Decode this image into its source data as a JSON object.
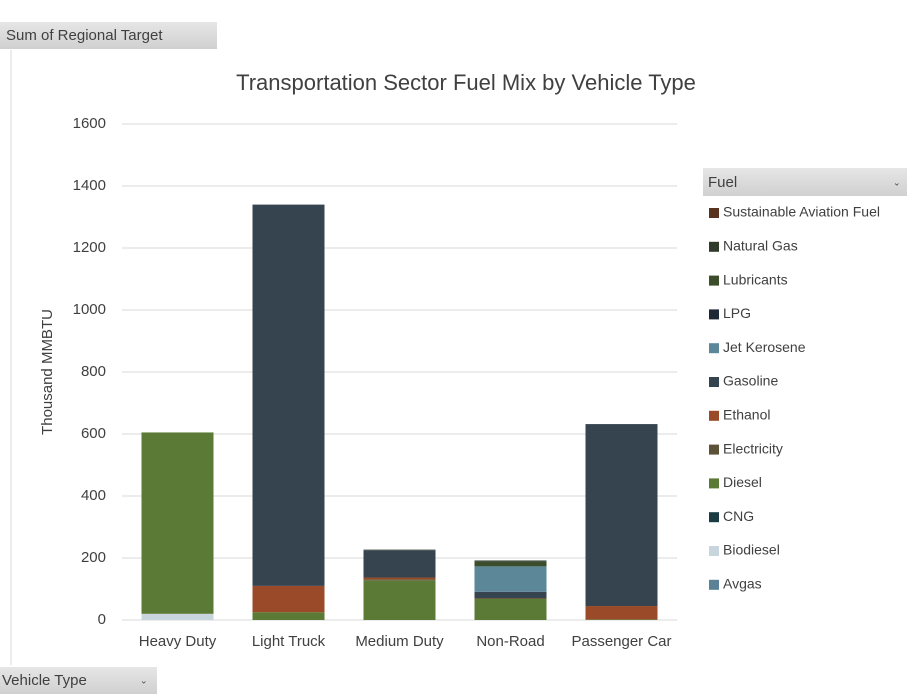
{
  "chart_data": {
    "type": "bar",
    "stacked": true,
    "value_field": "Sum of Regional Target",
    "axis_field": "Vehicle Type",
    "legend_title": "Fuel",
    "legend_position": "right",
    "title": "Transportation Sector Fuel Mix by Vehicle Type",
    "ylabel": "Thousand MMBTU",
    "categories": [
      "Heavy Duty",
      "Light Truck",
      "Medium Duty",
      "Non-Road",
      "Passenger Car"
    ],
    "ylim": [
      0,
      1600
    ],
    "yticks": [
      0,
      200,
      400,
      600,
      800,
      1000,
      1200,
      1400,
      1600
    ],
    "grid": true,
    "series": [
      {
        "name": "Avgas",
        "color": "#5a8196",
        "values": [
          null,
          null,
          null,
          null,
          null
        ]
      },
      {
        "name": "Biodiesel",
        "color": "#c9d5dd",
        "values": [
          20,
          null,
          null,
          null,
          null
        ]
      },
      {
        "name": "CNG",
        "color": "#1b3a42",
        "values": [
          null,
          null,
          null,
          null,
          null
        ]
      },
      {
        "name": "Diesel",
        "color": "#5b7a35",
        "values": [
          585,
          25,
          128,
          68,
          2
        ]
      },
      {
        "name": "Electricity",
        "color": "#5c5238",
        "values": [
          null,
          null,
          3,
          3,
          null
        ]
      },
      {
        "name": "Ethanol",
        "color": "#9a4a28",
        "values": [
          null,
          85,
          6,
          null,
          43
        ]
      },
      {
        "name": "Gasoline",
        "color": "#36444f",
        "values": [
          null,
          1230,
          88,
          20,
          587
        ]
      },
      {
        "name": "Jet Kerosene",
        "color": "#5b8799",
        "values": [
          null,
          null,
          null,
          82,
          null
        ]
      },
      {
        "name": "LPG",
        "color": "#1c2836",
        "values": [
          null,
          null,
          null,
          null,
          null
        ]
      },
      {
        "name": "Lubricants",
        "color": "#3b4d2a",
        "values": [
          null,
          null,
          null,
          15,
          null
        ]
      },
      {
        "name": "Natural Gas",
        "color": "#2f3a2a",
        "values": [
          null,
          null,
          2,
          4,
          null
        ]
      },
      {
        "name": "Sustainable Aviation Fuel",
        "color": "#5a3320",
        "values": [
          null,
          null,
          null,
          null,
          null
        ]
      }
    ]
  }
}
